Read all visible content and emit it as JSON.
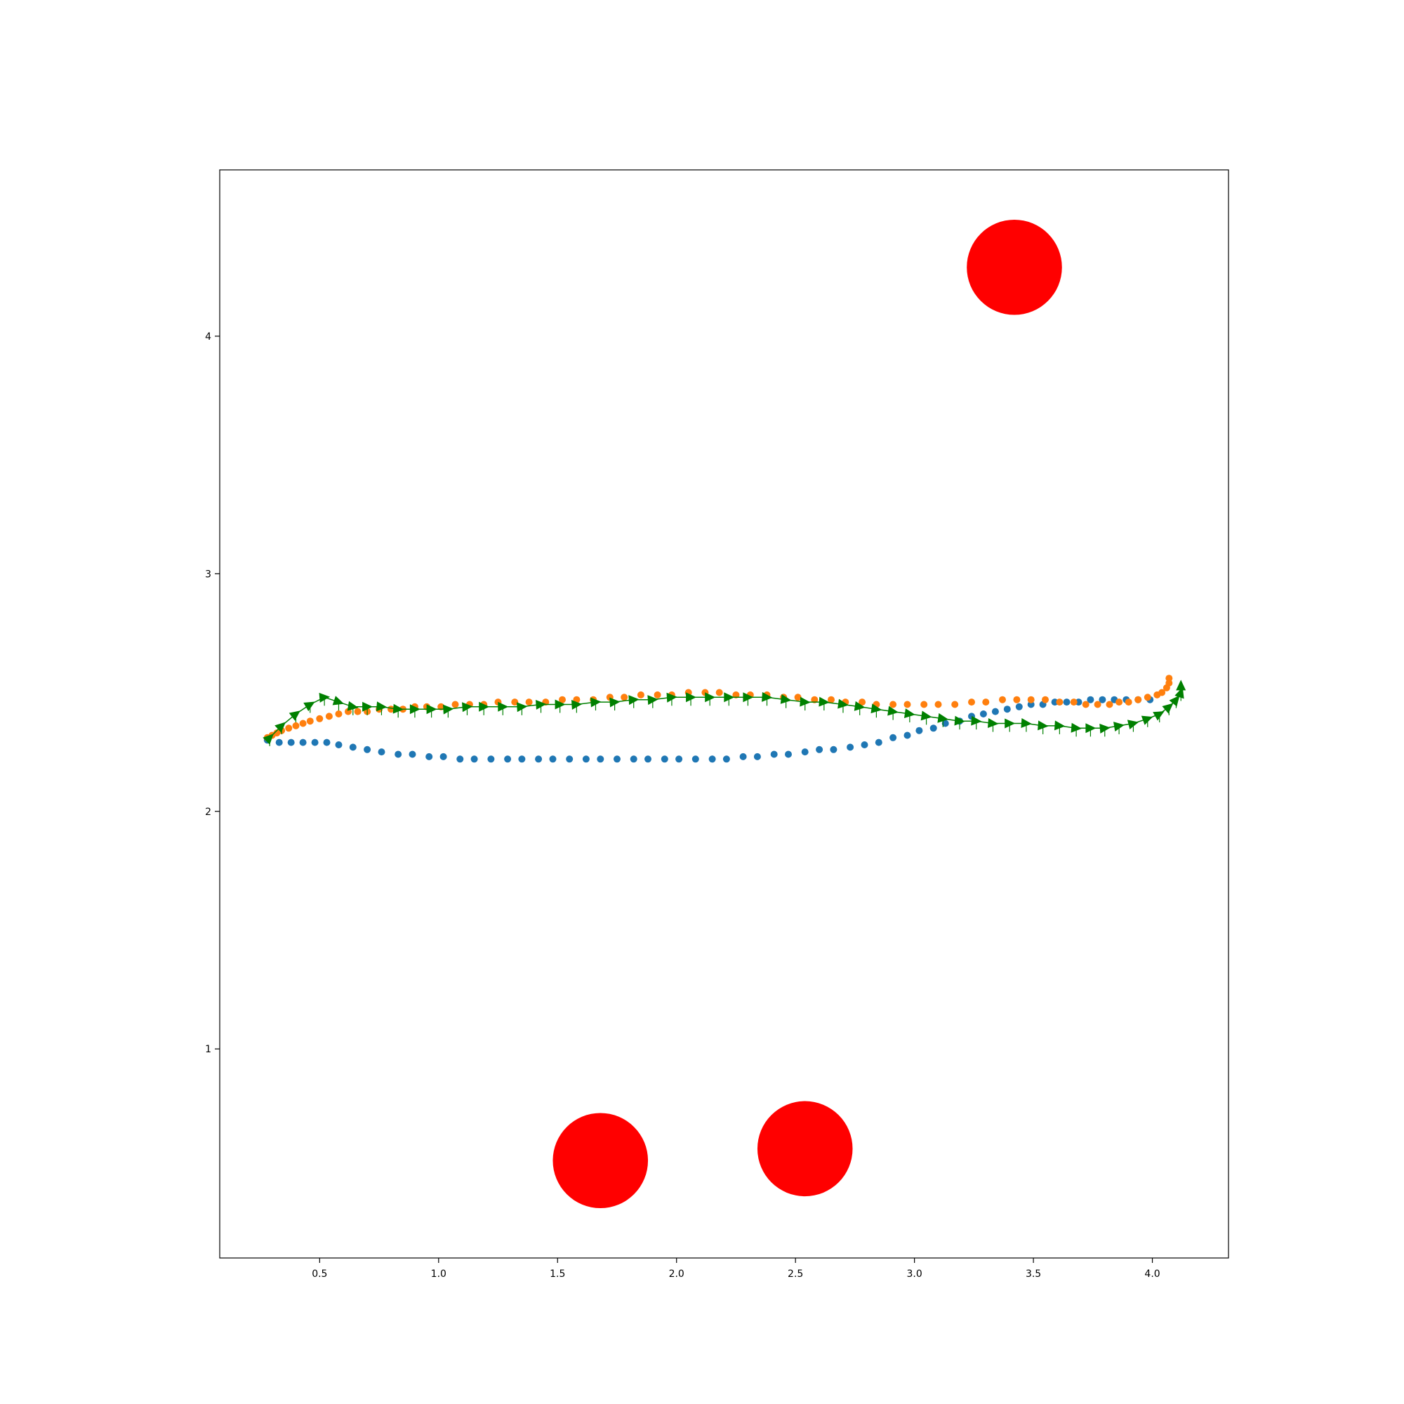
{
  "chart_data": {
    "type": "scatter",
    "xlim": [
      0.08,
      4.32
    ],
    "ylim": [
      0.12,
      4.7
    ],
    "x_ticks": [
      0.5,
      1.0,
      1.5,
      2.0,
      2.5,
      3.0,
      3.5,
      4.0
    ],
    "x_tick_labels": [
      "0.5",
      "1.0",
      "1.5",
      "2.0",
      "2.5",
      "3.0",
      "3.5",
      "4.0"
    ],
    "y_ticks": [
      1,
      2,
      3,
      4
    ],
    "y_tick_labels": [
      "1",
      "2",
      "3",
      "4"
    ],
    "grid": false,
    "title": "",
    "xlabel": "",
    "ylabel": "",
    "obstacles": {
      "color": "#ff0000",
      "radius": 0.2,
      "centers": [
        [
          3.42,
          4.29
        ],
        [
          1.68,
          0.53
        ],
        [
          2.54,
          0.58
        ]
      ]
    },
    "series": [
      {
        "color": "#1f77b4",
        "marker": "circle",
        "points": [
          [
            0.28,
            2.3
          ],
          [
            0.33,
            2.29
          ],
          [
            0.38,
            2.29
          ],
          [
            0.43,
            2.29
          ],
          [
            0.48,
            2.29
          ],
          [
            0.53,
            2.29
          ],
          [
            0.58,
            2.28
          ],
          [
            0.64,
            2.27
          ],
          [
            0.7,
            2.26
          ],
          [
            0.76,
            2.25
          ],
          [
            0.83,
            2.24
          ],
          [
            0.89,
            2.24
          ],
          [
            0.96,
            2.23
          ],
          [
            1.02,
            2.23
          ],
          [
            1.09,
            2.22
          ],
          [
            1.15,
            2.22
          ],
          [
            1.22,
            2.22
          ],
          [
            1.29,
            2.22
          ],
          [
            1.35,
            2.22
          ],
          [
            1.42,
            2.22
          ],
          [
            1.48,
            2.22
          ],
          [
            1.55,
            2.22
          ],
          [
            1.62,
            2.22
          ],
          [
            1.68,
            2.22
          ],
          [
            1.75,
            2.22
          ],
          [
            1.82,
            2.22
          ],
          [
            1.88,
            2.22
          ],
          [
            1.95,
            2.22
          ],
          [
            2.01,
            2.22
          ],
          [
            2.08,
            2.22
          ],
          [
            2.15,
            2.22
          ],
          [
            2.21,
            2.22
          ],
          [
            2.28,
            2.23
          ],
          [
            2.34,
            2.23
          ],
          [
            2.41,
            2.24
          ],
          [
            2.47,
            2.24
          ],
          [
            2.54,
            2.25
          ],
          [
            2.6,
            2.26
          ],
          [
            2.66,
            2.26
          ],
          [
            2.73,
            2.27
          ],
          [
            2.79,
            2.28
          ],
          [
            2.85,
            2.29
          ],
          [
            2.91,
            2.31
          ],
          [
            2.97,
            2.32
          ],
          [
            3.02,
            2.34
          ],
          [
            3.08,
            2.35
          ],
          [
            3.13,
            2.37
          ],
          [
            3.19,
            2.38
          ],
          [
            3.24,
            2.4
          ],
          [
            3.29,
            2.41
          ],
          [
            3.34,
            2.42
          ],
          [
            3.39,
            2.43
          ],
          [
            3.44,
            2.44
          ],
          [
            3.49,
            2.45
          ],
          [
            3.54,
            2.45
          ],
          [
            3.59,
            2.46
          ],
          [
            3.64,
            2.46
          ],
          [
            3.69,
            2.46
          ],
          [
            3.74,
            2.47
          ],
          [
            3.79,
            2.47
          ],
          [
            3.84,
            2.47
          ],
          [
            3.89,
            2.47
          ],
          [
            3.94,
            2.47
          ],
          [
            3.99,
            2.47
          ]
        ]
      },
      {
        "color": "#ff7f0e",
        "marker": "circle",
        "points": [
          [
            0.28,
            2.31
          ],
          [
            0.3,
            2.32
          ],
          [
            0.32,
            2.33
          ],
          [
            0.34,
            2.34
          ],
          [
            0.37,
            2.35
          ],
          [
            0.4,
            2.36
          ],
          [
            0.43,
            2.37
          ],
          [
            0.46,
            2.38
          ],
          [
            0.5,
            2.39
          ],
          [
            0.54,
            2.4
          ],
          [
            0.58,
            2.41
          ],
          [
            0.62,
            2.42
          ],
          [
            0.66,
            2.42
          ],
          [
            0.7,
            2.42
          ],
          [
            0.75,
            2.43
          ],
          [
            0.8,
            2.43
          ],
          [
            0.85,
            2.43
          ],
          [
            0.9,
            2.44
          ],
          [
            0.95,
            2.44
          ],
          [
            1.01,
            2.44
          ],
          [
            1.07,
            2.45
          ],
          [
            1.13,
            2.45
          ],
          [
            1.19,
            2.45
          ],
          [
            1.25,
            2.46
          ],
          [
            1.32,
            2.46
          ],
          [
            1.38,
            2.46
          ],
          [
            1.45,
            2.46
          ],
          [
            1.52,
            2.47
          ],
          [
            1.58,
            2.47
          ],
          [
            1.65,
            2.47
          ],
          [
            1.72,
            2.48
          ],
          [
            1.78,
            2.48
          ],
          [
            1.85,
            2.49
          ],
          [
            1.92,
            2.49
          ],
          [
            1.98,
            2.49
          ],
          [
            2.05,
            2.5
          ],
          [
            2.12,
            2.5
          ],
          [
            2.18,
            2.5
          ],
          [
            2.25,
            2.49
          ],
          [
            2.31,
            2.49
          ],
          [
            2.38,
            2.49
          ],
          [
            2.45,
            2.48
          ],
          [
            2.51,
            2.48
          ],
          [
            2.58,
            2.47
          ],
          [
            2.65,
            2.47
          ],
          [
            2.71,
            2.46
          ],
          [
            2.78,
            2.46
          ],
          [
            2.84,
            2.45
          ],
          [
            2.91,
            2.45
          ],
          [
            2.97,
            2.45
          ],
          [
            3.04,
            2.45
          ],
          [
            3.1,
            2.45
          ],
          [
            3.17,
            2.45
          ],
          [
            3.24,
            2.46
          ],
          [
            3.3,
            2.46
          ],
          [
            3.37,
            2.47
          ],
          [
            3.43,
            2.47
          ],
          [
            3.49,
            2.47
          ],
          [
            3.55,
            2.47
          ],
          [
            3.61,
            2.46
          ],
          [
            3.67,
            2.46
          ],
          [
            3.72,
            2.45
          ],
          [
            3.77,
            2.45
          ],
          [
            3.82,
            2.45
          ],
          [
            3.86,
            2.46
          ],
          [
            3.9,
            2.46
          ],
          [
            3.94,
            2.47
          ],
          [
            3.98,
            2.48
          ],
          [
            4.02,
            2.49
          ],
          [
            4.04,
            2.5
          ],
          [
            4.06,
            2.52
          ],
          [
            4.07,
            2.54
          ],
          [
            4.07,
            2.56
          ]
        ]
      },
      {
        "color": "#008000",
        "marker": "arrow",
        "points": [
          [
            0.29,
            2.31
          ],
          [
            0.34,
            2.36
          ],
          [
            0.4,
            2.41
          ],
          [
            0.46,
            2.45
          ],
          [
            0.52,
            2.48
          ],
          [
            0.58,
            2.46
          ],
          [
            0.64,
            2.44
          ],
          [
            0.7,
            2.44
          ],
          [
            0.76,
            2.44
          ],
          [
            0.83,
            2.43
          ],
          [
            0.9,
            2.43
          ],
          [
            0.97,
            2.43
          ],
          [
            1.04,
            2.43
          ],
          [
            1.12,
            2.44
          ],
          [
            1.19,
            2.44
          ],
          [
            1.27,
            2.44
          ],
          [
            1.35,
            2.44
          ],
          [
            1.43,
            2.45
          ],
          [
            1.51,
            2.45
          ],
          [
            1.58,
            2.45
          ],
          [
            1.66,
            2.46
          ],
          [
            1.74,
            2.46
          ],
          [
            1.82,
            2.47
          ],
          [
            1.9,
            2.47
          ],
          [
            1.98,
            2.48
          ],
          [
            2.06,
            2.48
          ],
          [
            2.14,
            2.48
          ],
          [
            2.22,
            2.48
          ],
          [
            2.3,
            2.48
          ],
          [
            2.38,
            2.48
          ],
          [
            2.46,
            2.47
          ],
          [
            2.54,
            2.46
          ],
          [
            2.62,
            2.46
          ],
          [
            2.7,
            2.45
          ],
          [
            2.77,
            2.44
          ],
          [
            2.84,
            2.43
          ],
          [
            2.91,
            2.42
          ],
          [
            2.98,
            2.41
          ],
          [
            3.05,
            2.4
          ],
          [
            3.12,
            2.39
          ],
          [
            3.19,
            2.38
          ],
          [
            3.26,
            2.38
          ],
          [
            3.33,
            2.37
          ],
          [
            3.4,
            2.37
          ],
          [
            3.47,
            2.37
          ],
          [
            3.54,
            2.36
          ],
          [
            3.61,
            2.36
          ],
          [
            3.68,
            2.35
          ],
          [
            3.74,
            2.35
          ],
          [
            3.8,
            2.35
          ],
          [
            3.86,
            2.36
          ],
          [
            3.92,
            2.37
          ],
          [
            3.98,
            2.39
          ],
          [
            4.03,
            2.41
          ],
          [
            4.07,
            2.44
          ],
          [
            4.1,
            2.47
          ],
          [
            4.12,
            2.5
          ],
          [
            4.12,
            2.53
          ]
        ]
      }
    ]
  }
}
